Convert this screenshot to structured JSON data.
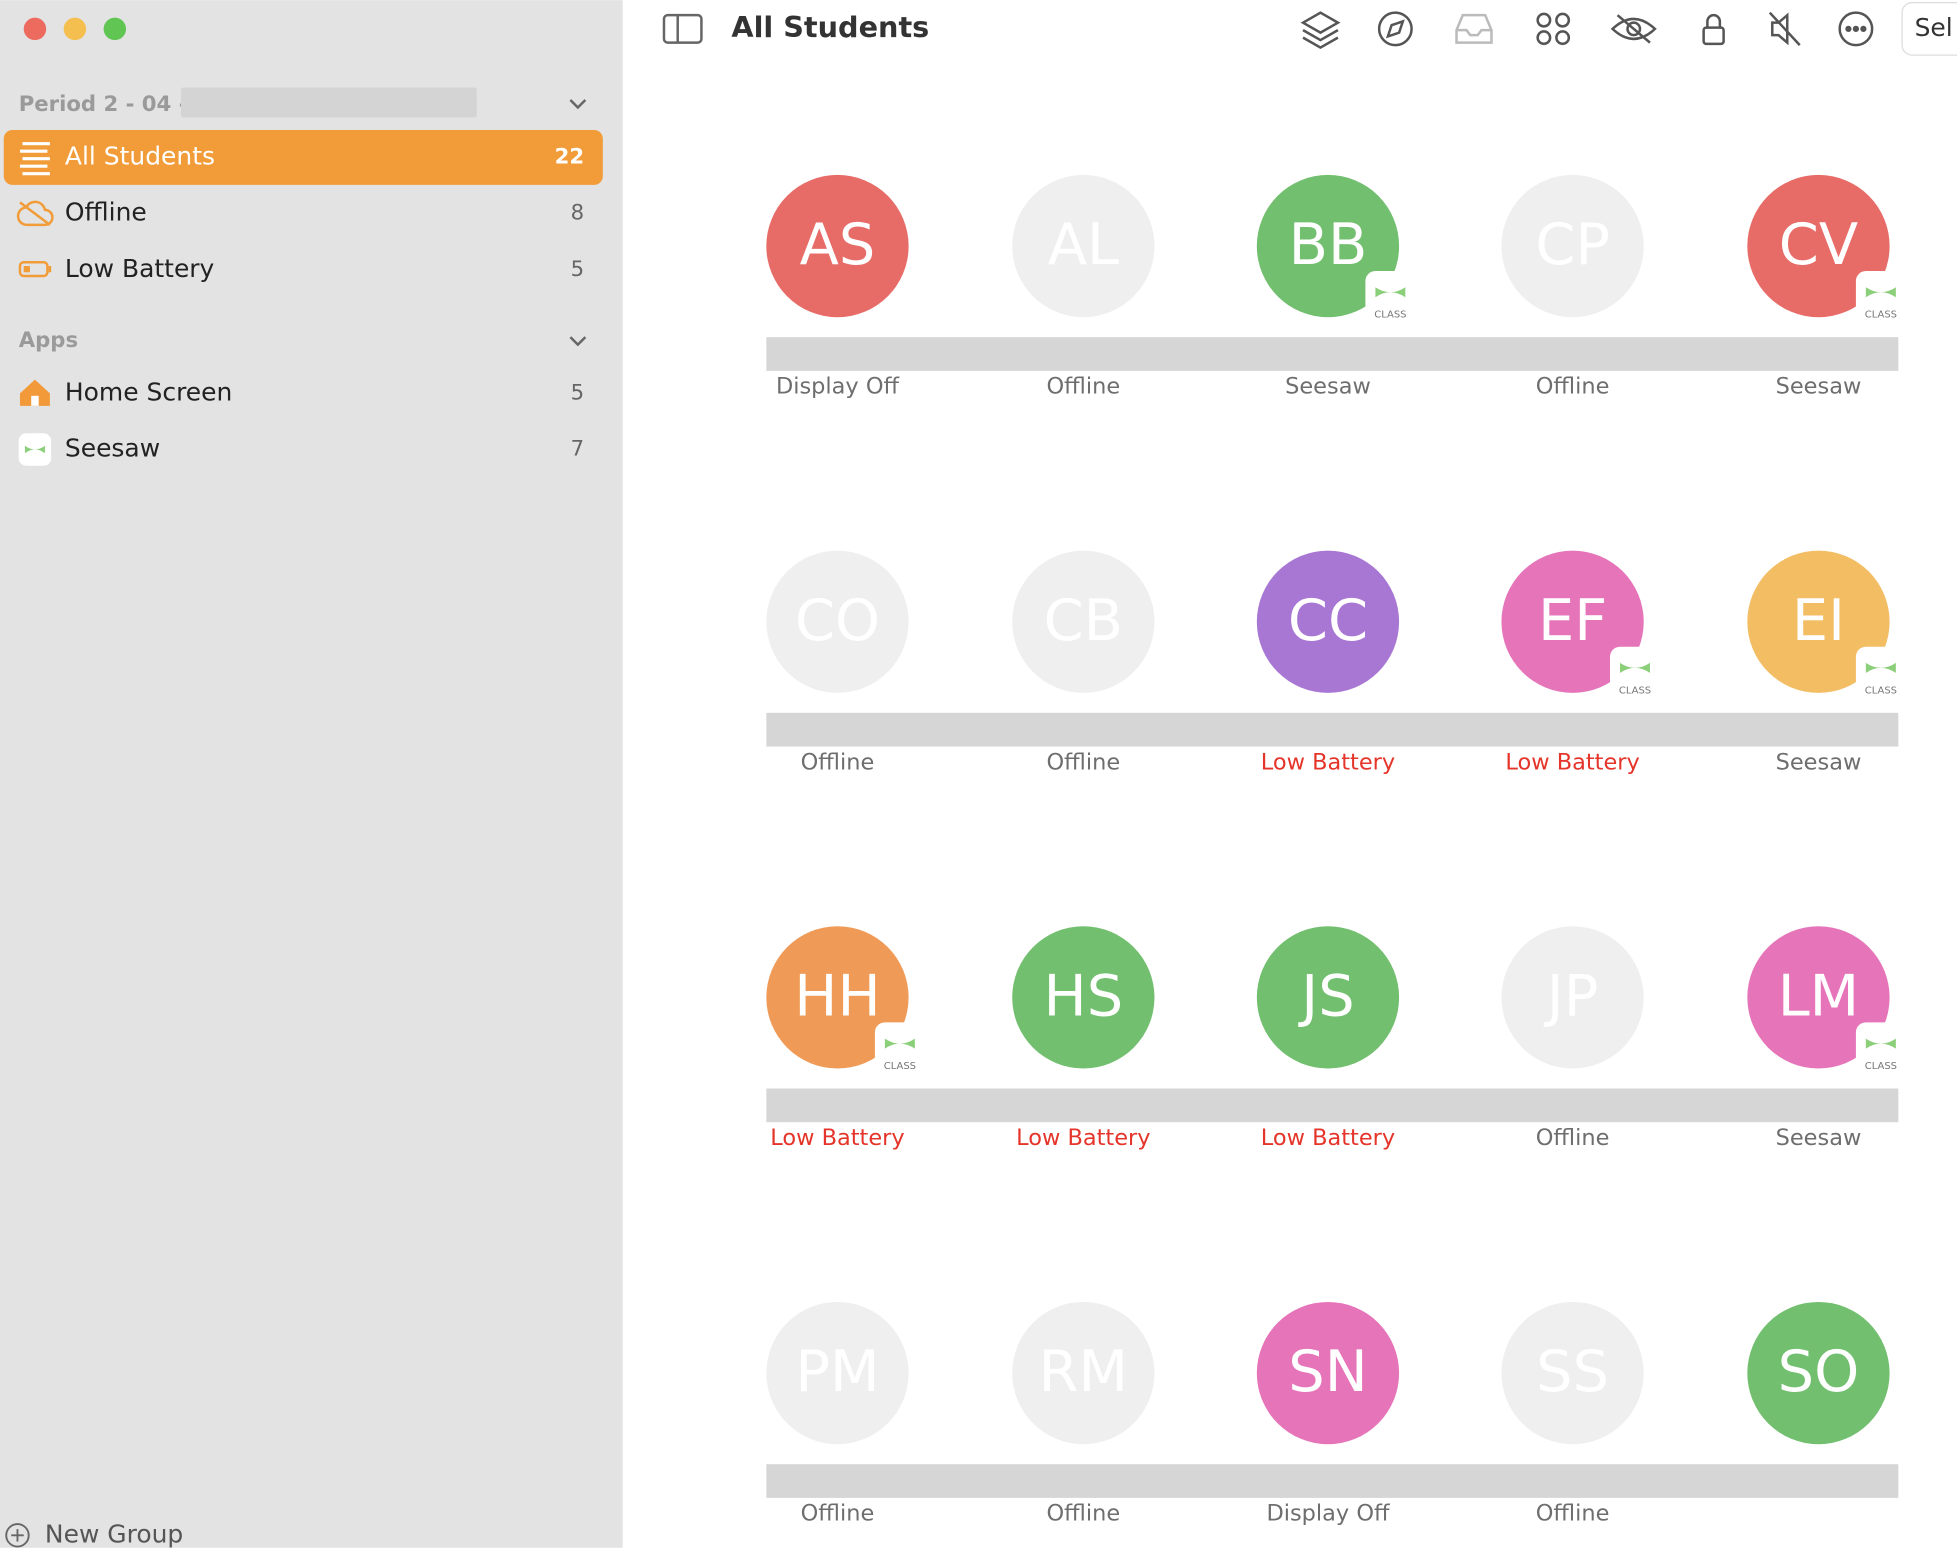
{
  "sidebar": {
    "class_title": "Period 2 - 04 -",
    "groups": [
      {
        "name": "All Students",
        "count": 22
      },
      {
        "name": "Offline",
        "count": 8
      },
      {
        "name": "Low Battery",
        "count": 5
      }
    ],
    "apps_title": "Apps",
    "apps": [
      {
        "name": "Home Screen",
        "count": 5
      },
      {
        "name": "Seesaw",
        "count": 7
      }
    ],
    "new_group": "New Group"
  },
  "toolbar": {
    "title": "All Students",
    "select": "Sel"
  },
  "badge_label": "CLASS",
  "students": [
    {
      "initials": "AS",
      "color": "#e76c68",
      "badge": false,
      "status": "Display Off",
      "status_color": "#6e6e6e"
    },
    {
      "initials": "AL",
      "color": null,
      "badge": false,
      "status": "Offline",
      "status_color": "#6e6e6e"
    },
    {
      "initials": "BB",
      "color": "#72bf6f",
      "badge": true,
      "status": "Seesaw",
      "status_color": "#6e6e6e"
    },
    {
      "initials": "CP",
      "color": null,
      "badge": false,
      "status": "Offline",
      "status_color": "#6e6e6e"
    },
    {
      "initials": "CV",
      "color": "#e76c68",
      "badge": true,
      "status": "Seesaw",
      "status_color": "#6e6e6e"
    },
    {
      "initials": "CO",
      "color": null,
      "badge": false,
      "status": "Offline",
      "status_color": "#6e6e6e"
    },
    {
      "initials": "CB",
      "color": null,
      "badge": false,
      "status": "Offline",
      "status_color": "#6e6e6e"
    },
    {
      "initials": "CC",
      "color": "#a877d3",
      "badge": false,
      "status": "Low Battery",
      "status_color": "#e5342a"
    },
    {
      "initials": "EF",
      "color": "#e574b9",
      "badge": true,
      "status": "Low Battery",
      "status_color": "#e5342a"
    },
    {
      "initials": "EI",
      "color": "#f2bd63",
      "badge": true,
      "status": "Seesaw",
      "status_color": "#6e6e6e"
    },
    {
      "initials": "HH",
      "color": "#ef9b57",
      "badge": true,
      "status": "Low Battery",
      "status_color": "#e5342a"
    },
    {
      "initials": "HS",
      "color": "#72bf6f",
      "badge": false,
      "status": "Low Battery",
      "status_color": "#e5342a"
    },
    {
      "initials": "JS",
      "color": "#72bf6f",
      "badge": false,
      "status": "Low Battery",
      "status_color": "#e5342a"
    },
    {
      "initials": "JP",
      "color": null,
      "badge": false,
      "status": "Offline",
      "status_color": "#6e6e6e"
    },
    {
      "initials": "LM",
      "color": "#e574b9",
      "badge": true,
      "status": "Seesaw",
      "status_color": "#6e6e6e"
    },
    {
      "initials": "PM",
      "color": null,
      "badge": false,
      "status": "Offline",
      "status_color": "#6e6e6e"
    },
    {
      "initials": "RM",
      "color": null,
      "badge": false,
      "status": "Offline",
      "status_color": "#6e6e6e"
    },
    {
      "initials": "SN",
      "color": "#e574b9",
      "badge": false,
      "status": "Display Off",
      "status_color": "#6e6e6e"
    },
    {
      "initials": "SS",
      "color": null,
      "badge": false,
      "status": "Offline",
      "status_color": "#6e6e6e"
    },
    {
      "initials": "SO",
      "color": "#72bf6f",
      "badge": false,
      "status": null,
      "status_color": null
    }
  ]
}
